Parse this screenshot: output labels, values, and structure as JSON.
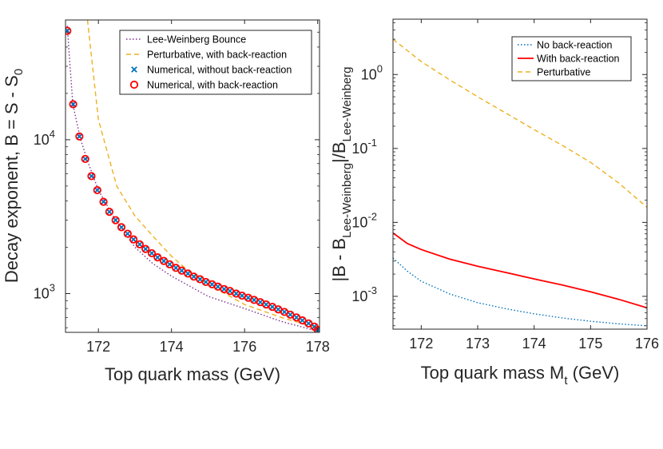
{
  "chart_data": [
    {
      "type": "line",
      "scale_y": "log",
      "xlabel": "Top quark mass (GeV)",
      "ylabel": "Decay exponent, B = S - S",
      "ylabel_sub": "0",
      "xlim": [
        171.1,
        178.05
      ],
      "ylim": [
        560,
        60000
      ],
      "xticks": [
        172,
        174,
        176,
        178
      ],
      "xtick_labels": [
        "172",
        "174",
        "176",
        "178"
      ],
      "yticks": [
        1000,
        10000
      ],
      "ytick_labels": [
        [
          "10",
          "3"
        ],
        [
          "10",
          "4"
        ]
      ],
      "legend": [
        "Lee-Weinberg Bounce",
        "Perturbative, with back-reaction",
        "Numerical, without back-reaction",
        "Numerical, with back-reaction"
      ],
      "series": [
        {
          "name": "Lee-Weinberg Bounce",
          "style": "dotted",
          "color": "#7E2F8E",
          "x": [
            171.15,
            171.2,
            171.3,
            171.5,
            171.7,
            172.0,
            172.4,
            173.0,
            173.5,
            174.0,
            175.0,
            176.0,
            177.0,
            178.0
          ],
          "y": [
            55000,
            36000,
            17000,
            10300,
            7300,
            4700,
            3200,
            2000,
            1560,
            1300,
            960,
            800,
            660,
            570
          ]
        },
        {
          "name": "Perturbative, with back-reaction",
          "style": "dashed",
          "color": "#EDB120",
          "x": [
            171.7,
            172.0,
            172.5,
            173.0,
            173.5,
            174.0,
            174.5,
            175.0,
            176.0,
            177.0,
            178.0
          ],
          "y": [
            60000,
            13500,
            5000,
            3200,
            2350,
            1750,
            1380,
            1150,
            850,
            700,
            600
          ]
        },
        {
          "name": "Numerical, without back-reaction",
          "marker": "x",
          "color": "#0072BD",
          "x": [
            171.15,
            171.31,
            171.48,
            171.64,
            171.81,
            171.97,
            172.14,
            172.3,
            172.47,
            172.63,
            172.8,
            172.96,
            173.13,
            173.29,
            173.46,
            173.62,
            173.79,
            173.95,
            174.12,
            174.28,
            174.45,
            174.61,
            174.78,
            174.94,
            175.11,
            175.27,
            175.44,
            175.6,
            175.77,
            175.93,
            176.1,
            176.26,
            176.43,
            176.59,
            176.76,
            176.92,
            177.09,
            177.25,
            177.42,
            177.58,
            177.75,
            177.91,
            178.0
          ],
          "y": [
            51000,
            17000,
            10500,
            7500,
            5800,
            4700,
            3950,
            3400,
            3000,
            2700,
            2450,
            2250,
            2090,
            1950,
            1830,
            1720,
            1630,
            1550,
            1470,
            1410,
            1350,
            1290,
            1240,
            1190,
            1150,
            1110,
            1070,
            1040,
            1000,
            970,
            940,
            910,
            880,
            850,
            820,
            790,
            760,
            730,
            700,
            670,
            640,
            610,
            580
          ]
        },
        {
          "name": "Numerical, with back-reaction",
          "marker": "o",
          "color": "#FF0000",
          "x": [
            171.15,
            171.31,
            171.48,
            171.64,
            171.81,
            171.97,
            172.14,
            172.3,
            172.47,
            172.63,
            172.8,
            172.96,
            173.13,
            173.29,
            173.46,
            173.62,
            173.79,
            173.95,
            174.12,
            174.28,
            174.45,
            174.61,
            174.78,
            174.94,
            175.11,
            175.27,
            175.44,
            175.6,
            175.77,
            175.93,
            176.1,
            176.26,
            176.43,
            176.59,
            176.76,
            176.92,
            177.09,
            177.25,
            177.42,
            177.58,
            177.75,
            177.91,
            178.0
          ],
          "y": [
            51000,
            17000,
            10500,
            7500,
            5800,
            4700,
            3950,
            3400,
            3000,
            2700,
            2450,
            2250,
            2090,
            1950,
            1830,
            1720,
            1630,
            1550,
            1470,
            1410,
            1350,
            1290,
            1240,
            1190,
            1150,
            1110,
            1070,
            1040,
            1000,
            970,
            940,
            910,
            880,
            850,
            820,
            790,
            760,
            730,
            700,
            670,
            640,
            610,
            580
          ]
        }
      ]
    },
    {
      "type": "line",
      "scale_y": "log",
      "xlabel": "Top quark mass M",
      "xlabel_sub": "t",
      "xlabel_tail": " (GeV)",
      "ylabel_parts": [
        "|B - B",
        "Lee-Weinberg",
        "|/B",
        "Lee-Weinberg"
      ],
      "xlim": [
        171.5,
        176.0
      ],
      "ylim": [
        0.00036,
        5.6
      ],
      "xticks": [
        172,
        173,
        174,
        175,
        176
      ],
      "xtick_labels": [
        "172",
        "173",
        "174",
        "175",
        "176"
      ],
      "yticks": [
        0.001,
        0.01,
        0.1,
        1
      ],
      "ytick_labels": [
        [
          "10",
          "-3"
        ],
        [
          "10",
          "-2"
        ],
        [
          "10",
          "-1"
        ],
        [
          "10",
          "0"
        ]
      ],
      "legend": [
        "No back-reaction",
        "With back-reaction",
        "Perturbative"
      ],
      "series": [
        {
          "name": "No back-reaction",
          "style": "dotted",
          "color": "#0072BD",
          "x": [
            171.5,
            171.75,
            172.0,
            172.5,
            173.0,
            173.5,
            174.0,
            174.5,
            175.0,
            175.5,
            176.0
          ],
          "y": [
            0.0033,
            0.0022,
            0.0016,
            0.00108,
            0.00082,
            0.00068,
            0.00058,
            0.00051,
            0.00046,
            0.000425,
            0.0004
          ]
        },
        {
          "name": "With back-reaction",
          "style": "solid",
          "color": "#FF0000",
          "x": [
            171.5,
            171.75,
            172.0,
            172.5,
            173.0,
            173.5,
            174.0,
            174.5,
            175.0,
            175.5,
            176.0
          ],
          "y": [
            0.0072,
            0.0052,
            0.0043,
            0.0032,
            0.00255,
            0.0021,
            0.00172,
            0.00142,
            0.00115,
            0.00091,
            0.0007
          ]
        },
        {
          "name": "Perturbative",
          "style": "dashed",
          "color": "#EDB120",
          "x": [
            171.5,
            172.0,
            172.5,
            173.0,
            173.5,
            174.0,
            174.5,
            175.0,
            175.5,
            176.0
          ],
          "y": [
            3.0,
            1.5,
            0.85,
            0.5,
            0.3,
            0.18,
            0.11,
            0.065,
            0.034,
            0.016
          ]
        }
      ]
    }
  ]
}
